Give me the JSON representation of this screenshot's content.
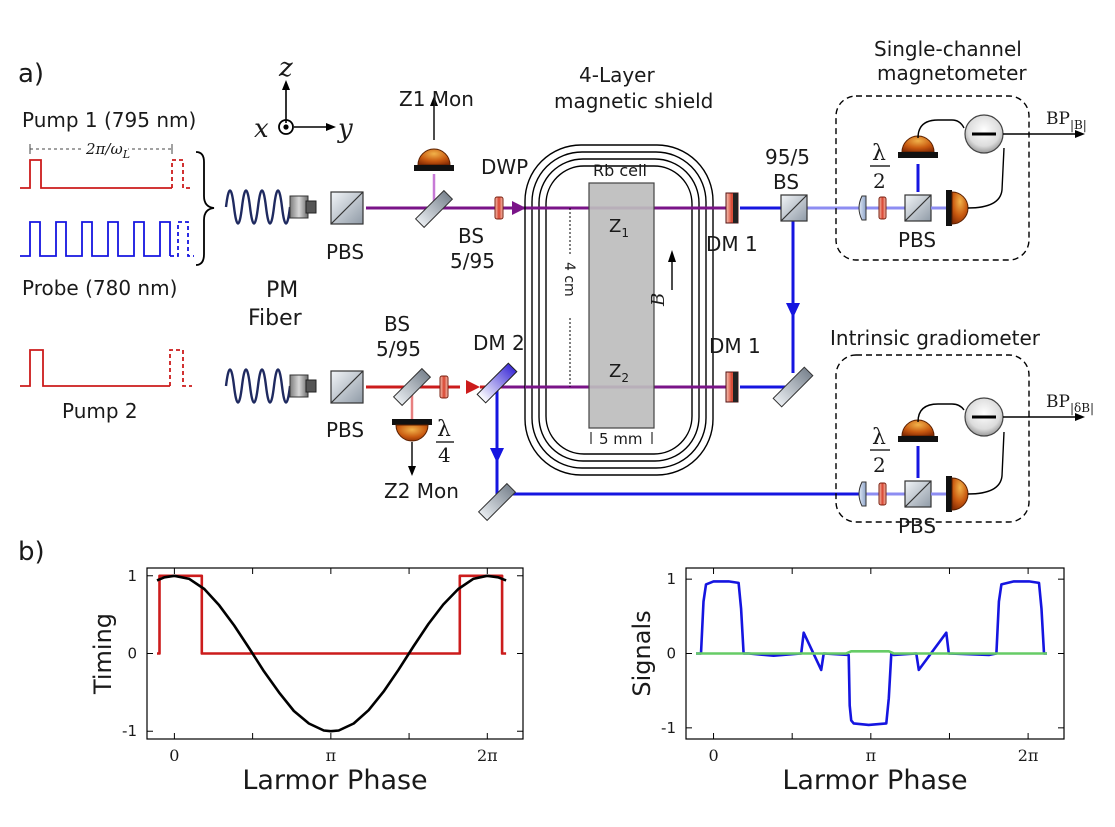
{
  "panels": {
    "a": "a)",
    "b": "b)"
  },
  "axes_triad": {
    "z": "z",
    "x": "x",
    "y": "y"
  },
  "pulses": {
    "pump1": "Pump 1 (795 nm)",
    "period": "2π/ω",
    "period_sub": "L",
    "probe": "Probe (780 nm)",
    "pump2": "Pump 2"
  },
  "fiber": {
    "line1": "PM",
    "line2": "Fiber"
  },
  "components": {
    "pbs_top": "PBS",
    "pbs_bottom": "PBS",
    "z1_mon": "Z1 Mon",
    "z2_mon": "Z2 Mon",
    "bs_top_1": "BS",
    "bs_top_2": "5/95",
    "bs_bot_1": "BS",
    "bs_bot_2": "5/95",
    "dwp": "DWP",
    "qwp_num": "λ",
    "qwp_den": "4",
    "dm2": "DM 2",
    "dm1_top": "DM 1",
    "dm1_bottom": "DM 1",
    "bs95_1": "95/5",
    "bs95_2": "BS"
  },
  "shield": {
    "title1": "4-Layer",
    "title2": "magnetic shield",
    "cell": "Rb cell",
    "z1": "Z",
    "z1_sub": "1",
    "z2": "Z",
    "z2_sub": "2",
    "height": "4 cm",
    "width": "5 mm",
    "field": "B"
  },
  "detectors": {
    "single_title1": "Single-channel",
    "single_title2": "magnetometer",
    "single_out": "BP",
    "single_out_sub": "|B|",
    "grad_title": "Intrinsic gradiometer",
    "grad_out": "BP",
    "grad_out_sub": "|δB|",
    "hwp_num": "λ",
    "hwp_den": "2",
    "pbs": "PBS"
  },
  "colors": {
    "pump": "#cc1c1c",
    "probe": "#1515e0",
    "combined": "#7a1488",
    "signal_green": "#66cc66"
  },
  "chart_data": [
    {
      "type": "line",
      "title": "",
      "xlabel": "Larmor Phase",
      "ylabel": "Timing",
      "xlim": [
        -0.55,
        7.0
      ],
      "ylim": [
        -1.1,
        1.1
      ],
      "xticks": [
        0,
        3.14159,
        6.28318
      ],
      "xtick_labels": [
        "0",
        "π",
        "2π"
      ],
      "yticks": [
        -1,
        0,
        1
      ],
      "ytick_labels": [
        "-1",
        "0",
        "1"
      ],
      "series": [
        {
          "color": "#cc1c1c",
          "x": [
            -0.35,
            -0.3,
            -0.3,
            0.55,
            0.55,
            5.73,
            5.73,
            6.58,
            6.58,
            6.66
          ],
          "y": [
            0,
            0,
            1,
            1,
            0,
            0,
            1,
            1,
            0,
            0
          ]
        },
        {
          "color": "#000000",
          "x": [
            -0.35,
            -0.2,
            0,
            0.3,
            0.6,
            0.9,
            1.2,
            1.5,
            1.8,
            2.1,
            2.4,
            2.7,
            3.0,
            3.14,
            3.3,
            3.6,
            3.9,
            4.2,
            4.5,
            4.8,
            5.1,
            5.4,
            5.7,
            6.0,
            6.28,
            6.5,
            6.66
          ],
          "y": [
            0.94,
            0.98,
            1.0,
            0.96,
            0.83,
            0.62,
            0.36,
            0.07,
            -0.23,
            -0.5,
            -0.74,
            -0.9,
            -0.99,
            -1.0,
            -0.99,
            -0.9,
            -0.73,
            -0.49,
            -0.21,
            0.09,
            0.38,
            0.63,
            0.83,
            0.96,
            1.0,
            0.98,
            0.94
          ]
        }
      ]
    },
    {
      "type": "line",
      "title": "",
      "xlabel": "Larmor Phase",
      "ylabel": "Signals",
      "xlim": [
        -0.55,
        7.0
      ],
      "ylim": [
        -1.15,
        1.15
      ],
      "xticks": [
        0,
        3.14159,
        6.28318
      ],
      "xtick_labels": [
        "0",
        "π",
        "2π"
      ],
      "yticks": [
        -1,
        0,
        1
      ],
      "ytick_labels": [
        "-1",
        "0",
        "1"
      ],
      "series": [
        {
          "color": "#1515e0",
          "x": [
            -0.35,
            -0.25,
            -0.2,
            -0.15,
            0.0,
            0.3,
            0.5,
            0.55,
            0.6,
            0.7,
            1.2,
            1.75,
            1.8,
            2.15,
            2.2,
            2.7,
            2.72,
            2.75,
            2.8,
            3.1,
            3.45,
            3.5,
            3.55,
            3.6,
            4.05,
            4.1,
            4.65,
            4.7,
            5.5,
            5.65,
            5.7,
            5.75,
            6.0,
            6.3,
            6.5,
            6.55,
            6.6,
            6.66
          ],
          "y": [
            0,
            0,
            0.7,
            0.93,
            0.97,
            0.97,
            0.95,
            0.6,
            0.0,
            0,
            -0.03,
            0.0,
            0.28,
            -0.22,
            0.0,
            -0.02,
            -0.7,
            -0.9,
            -0.94,
            -0.96,
            -0.94,
            -0.6,
            0.0,
            -0.02,
            0.0,
            -0.22,
            0.28,
            0.0,
            -0.02,
            0.0,
            0.7,
            0.93,
            0.97,
            0.97,
            0.95,
            0.6,
            0.0,
            0
          ]
        },
        {
          "color": "#66cc66",
          "x": [
            -0.35,
            2.65,
            2.75,
            3.5,
            3.6,
            6.66
          ],
          "y": [
            0,
            0,
            0.03,
            0.03,
            0,
            0
          ]
        }
      ]
    }
  ]
}
